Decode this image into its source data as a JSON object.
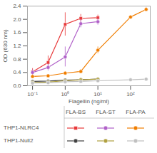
{
  "chart_data": {
    "type": "line",
    "xlabel": "Flagellin (ng/ml)",
    "ylabel": "OD (630 nm)",
    "log": "x",
    "grid": false,
    "legend": "bottom",
    "xlim": [
      0.07,
      400
    ],
    "xticks": [
      {
        "value": 0.1,
        "label": "10⁻¹"
      },
      {
        "value": 1.0,
        "label": "10⁰"
      },
      {
        "value": 10.0,
        "label": "10¹"
      },
      {
        "value": 100.0,
        "label": "10²"
      }
    ],
    "ylim": [
      0,
      2.4
    ],
    "yticks": [
      {
        "value": 0.0,
        "label": "0.0"
      },
      0.4,
      0.8,
      1.2,
      1.6,
      {
        "value": 2.0,
        "label": "2.0"
      },
      2.4
    ],
    "legend_columns": [
      "FLA-BS",
      "FLA-ST",
      "FLA-PA"
    ],
    "legend_rows": [
      "THP1-NLRC4",
      "THP1-Null2"
    ],
    "series": [
      {
        "row": "THP1-NLRC4",
        "column": "FLA-BS",
        "color": "#e8393a",
        "marker": "square",
        "x": [
          0.1,
          0.3,
          1.0,
          3.0,
          10.0
        ],
        "values": [
          0.42,
          0.7,
          1.85,
          2.03,
          2.05
        ],
        "errors": [
          0.1,
          0.2,
          0.35,
          0.12,
          0.08
        ]
      },
      {
        "row": "THP1-NLRC4",
        "column": "FLA-ST",
        "color": "#b060c8",
        "marker": "circle",
        "x": [
          0.1,
          0.3,
          1.0,
          3.0,
          10.0
        ],
        "values": [
          0.4,
          0.55,
          0.87,
          1.87,
          1.93
        ],
        "errors": [
          0.08,
          0.1,
          0.3,
          0.12,
          0.1
        ]
      },
      {
        "row": "THP1-NLRC4",
        "column": "FLA-PA",
        "color": "#f07d00",
        "marker": "circle",
        "x": [
          0.1,
          0.3,
          1.0,
          3.0,
          10.0,
          100.0,
          300.0
        ],
        "values": [
          0.28,
          0.3,
          0.38,
          0.43,
          1.07,
          2.07,
          2.3
        ],
        "errors": [
          0.05,
          0.04,
          0.05,
          0.06,
          0.1,
          0.05,
          0.06
        ]
      },
      {
        "row": "THP1-Null2",
        "column": "FLA-BS",
        "color": "#404040",
        "marker": "circle",
        "x": [
          0.1,
          0.3,
          1.0,
          3.0,
          10.0
        ],
        "values": [
          0.13,
          0.14,
          0.17,
          0.18,
          0.2
        ],
        "errors": [
          0.02,
          0.02,
          0.02,
          0.02,
          0.02
        ]
      },
      {
        "row": "THP1-Null2",
        "column": "FLA-ST",
        "color": "#b0a040",
        "marker": "circle",
        "x": [
          0.1,
          0.3,
          1.0,
          3.0,
          10.0
        ],
        "values": [
          0.1,
          0.11,
          0.15,
          0.18,
          0.2
        ],
        "errors": [
          0.02,
          0.02,
          0.02,
          0.02,
          0.02
        ]
      },
      {
        "row": "THP1-Null2",
        "column": "FLA-PA",
        "color": "#c0c0c0",
        "marker": "circle",
        "x": [
          0.1,
          0.3,
          1.0,
          3.0,
          10.0,
          100.0,
          300.0
        ],
        "values": [
          0.08,
          0.09,
          0.12,
          0.13,
          0.15,
          0.18,
          0.2
        ],
        "errors": [
          0.02,
          0.02,
          0.02,
          0.02,
          0.02,
          0.02,
          0.02
        ]
      }
    ]
  }
}
